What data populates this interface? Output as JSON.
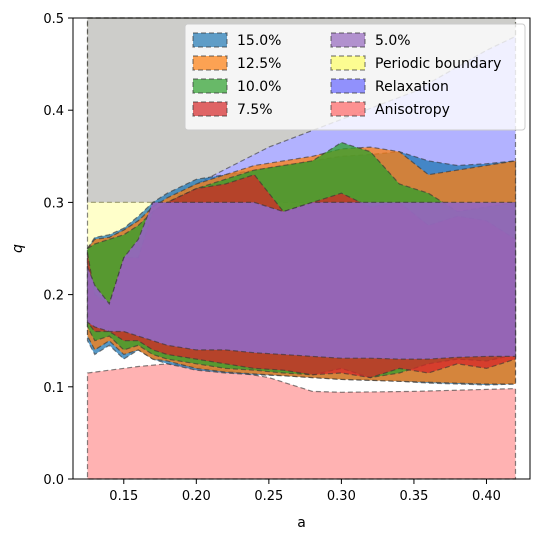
{
  "chart_data": {
    "type": "area",
    "xlabel": "a",
    "ylabel": "q",
    "xlim": [
      0.115,
      0.43
    ],
    "ylim": [
      0.0,
      0.5
    ],
    "x_ticks": [
      "0.15",
      "0.20",
      "0.25",
      "0.30",
      "0.35",
      "0.40"
    ],
    "x_tick_values": [
      0.15,
      0.2,
      0.25,
      0.3,
      0.35,
      0.4
    ],
    "y_ticks": [
      "0.0",
      "0.1",
      "0.2",
      "0.3",
      "0.4",
      "0.5"
    ],
    "y_tick_values": [
      0.0,
      0.1,
      0.2,
      0.3,
      0.4,
      0.5
    ],
    "grid": false,
    "legend": {
      "placement": "top-right",
      "columns": 2,
      "entries": [
        {
          "label": "15.0%",
          "color": "#1f77b4"
        },
        {
          "label": "12.5%",
          "color": "#ff7f0e"
        },
        {
          "label": "10.0%",
          "color": "#2ca02c"
        },
        {
          "label": "7.5%",
          "color": "#d62728"
        },
        {
          "label": "5.0%",
          "color": "#9467bd"
        },
        {
          "label": "Periodic boundary",
          "color": "#ffff66"
        },
        {
          "label": "Relaxation",
          "color": "#6666ff"
        },
        {
          "label": "Anisotropy",
          "color": "#ff6666"
        }
      ]
    },
    "regions": [
      {
        "name": "Anisotropy",
        "color": "#ff6666",
        "opacity": 0.5,
        "upper": {
          "x": [
            0.125,
            0.14,
            0.16,
            0.18,
            0.2,
            0.22,
            0.25,
            0.28,
            0.3,
            0.35,
            0.42
          ],
          "y": [
            0.115,
            0.118,
            0.122,
            0.125,
            0.122,
            0.118,
            0.11,
            0.095,
            0.094,
            0.095,
            0.098
          ]
        },
        "lower": {
          "x": [
            0.125,
            0.42
          ],
          "y": [
            0.0,
            0.0
          ]
        }
      },
      {
        "name": "Relaxation",
        "color": "#6666ff",
        "opacity": 0.5,
        "upper": {
          "x": [
            0.125,
            0.42
          ],
          "y": [
            0.5,
            0.5
          ]
        },
        "lower": {
          "x": [
            0.125,
            0.42
          ],
          "y": [
            0.3,
            0.3
          ]
        }
      },
      {
        "name": "Periodic boundary",
        "color": "#ffff66",
        "opacity": 0.35,
        "upper": {
          "x": [
            0.125,
            0.15,
            0.17,
            0.2,
            0.25,
            0.3,
            0.35,
            0.4,
            0.42
          ],
          "y": [
            0.25,
            0.27,
            0.29,
            0.32,
            0.36,
            0.39,
            0.42,
            0.465,
            0.48
          ]
        },
        "lower": {
          "x": [
            0.125,
            0.42
          ],
          "y": [
            0.5,
            0.5
          ]
        }
      },
      {
        "name": "15.0%",
        "color": "#1f77b4",
        "opacity": 0.75,
        "upper": {
          "x": [
            0.125,
            0.13,
            0.14,
            0.15,
            0.16,
            0.17,
            0.18,
            0.2,
            0.22,
            0.24,
            0.26,
            0.28,
            0.3,
            0.32,
            0.34,
            0.36,
            0.38,
            0.4,
            0.42
          ],
          "y": [
            0.25,
            0.262,
            0.265,
            0.272,
            0.285,
            0.3,
            0.31,
            0.325,
            0.33,
            0.335,
            0.34,
            0.345,
            0.35,
            0.352,
            0.355,
            0.345,
            0.34,
            0.342,
            0.345
          ]
        },
        "lower": {
          "x": [
            0.125,
            0.13,
            0.14,
            0.15,
            0.16,
            0.17,
            0.18,
            0.2,
            0.22,
            0.24,
            0.26,
            0.28,
            0.3,
            0.32,
            0.34,
            0.36,
            0.38,
            0.4,
            0.42
          ],
          "y": [
            0.15,
            0.135,
            0.145,
            0.13,
            0.14,
            0.13,
            0.125,
            0.118,
            0.115,
            0.113,
            0.112,
            0.11,
            0.108,
            0.107,
            0.106,
            0.104,
            0.103,
            0.102,
            0.103
          ]
        }
      },
      {
        "name": "12.5%",
        "color": "#ff7f0e",
        "opacity": 0.75,
        "upper": {
          "x": [
            0.125,
            0.13,
            0.14,
            0.15,
            0.16,
            0.17,
            0.18,
            0.2,
            0.22,
            0.24,
            0.26,
            0.28,
            0.3,
            0.32,
            0.34,
            0.36,
            0.38,
            0.4,
            0.42
          ],
          "y": [
            0.25,
            0.26,
            0.262,
            0.27,
            0.28,
            0.295,
            0.305,
            0.32,
            0.33,
            0.34,
            0.345,
            0.35,
            0.358,
            0.36,
            0.355,
            0.33,
            0.335,
            0.34,
            0.345
          ]
        },
        "lower": {
          "x": [
            0.125,
            0.13,
            0.14,
            0.15,
            0.16,
            0.17,
            0.18,
            0.2,
            0.22,
            0.24,
            0.26,
            0.28,
            0.3,
            0.32,
            0.34,
            0.36,
            0.38,
            0.4,
            0.42
          ],
          "y": [
            0.155,
            0.14,
            0.15,
            0.135,
            0.14,
            0.13,
            0.128,
            0.12,
            0.116,
            0.114,
            0.112,
            0.11,
            0.108,
            0.107,
            0.106,
            0.105,
            0.104,
            0.103,
            0.103
          ]
        }
      },
      {
        "name": "10.0%",
        "color": "#2ca02c",
        "opacity": 0.75,
        "upper": {
          "x": [
            0.125,
            0.13,
            0.14,
            0.15,
            0.16,
            0.17,
            0.18,
            0.2,
            0.22,
            0.24,
            0.26,
            0.28,
            0.3,
            0.32,
            0.34,
            0.36,
            0.38,
            0.4,
            0.42
          ],
          "y": [
            0.25,
            0.255,
            0.26,
            0.265,
            0.275,
            0.29,
            0.3,
            0.315,
            0.325,
            0.335,
            0.34,
            0.345,
            0.365,
            0.355,
            0.32,
            0.31,
            0.29,
            0.295,
            0.3
          ]
        },
        "lower": {
          "x": [
            0.125,
            0.13,
            0.14,
            0.15,
            0.16,
            0.17,
            0.18,
            0.2,
            0.22,
            0.24,
            0.26,
            0.28,
            0.3,
            0.32,
            0.34,
            0.36,
            0.38,
            0.4,
            0.42
          ],
          "y": [
            0.165,
            0.15,
            0.155,
            0.14,
            0.145,
            0.135,
            0.13,
            0.125,
            0.12,
            0.118,
            0.115,
            0.113,
            0.12,
            0.11,
            0.115,
            0.125,
            0.13,
            0.128,
            0.135
          ]
        }
      },
      {
        "name": "7.5%",
        "color": "#d62728",
        "opacity": 0.75,
        "upper": {
          "x": [
            0.125,
            0.13,
            0.14,
            0.15,
            0.16,
            0.17,
            0.18,
            0.2,
            0.22,
            0.24,
            0.26,
            0.28,
            0.3,
            0.32,
            0.34,
            0.36,
            0.38,
            0.4,
            0.42
          ],
          "y": [
            0.245,
            0.2,
            0.19,
            0.24,
            0.24,
            0.29,
            0.3,
            0.315,
            0.32,
            0.33,
            0.29,
            0.3,
            0.31,
            0.295,
            0.3,
            0.275,
            0.285,
            0.28,
            0.26
          ]
        },
        "lower": {
          "x": [
            0.125,
            0.13,
            0.14,
            0.15,
            0.16,
            0.17,
            0.18,
            0.2,
            0.22,
            0.24,
            0.26,
            0.28,
            0.3,
            0.32,
            0.34,
            0.36,
            0.38,
            0.4,
            0.42
          ],
          "y": [
            0.17,
            0.16,
            0.16,
            0.15,
            0.15,
            0.14,
            0.135,
            0.13,
            0.125,
            0.12,
            0.118,
            0.113,
            0.115,
            0.11,
            0.12,
            0.115,
            0.125,
            0.12,
            0.13
          ]
        }
      },
      {
        "name": "5.0%",
        "color": "#9467bd",
        "opacity": 0.95,
        "upper": {
          "x": [
            0.125,
            0.13,
            0.14,
            0.15,
            0.16,
            0.17,
            0.18,
            0.2,
            0.22,
            0.24,
            0.26,
            0.28,
            0.3,
            0.32,
            0.34,
            0.36,
            0.38,
            0.4,
            0.42
          ],
          "y": [
            0.23,
            0.21,
            0.19,
            0.24,
            0.26,
            0.3,
            0.3,
            0.3,
            0.3,
            0.3,
            0.29,
            0.3,
            0.3,
            0.3,
            0.3,
            0.3,
            0.3,
            0.3,
            0.3
          ]
        },
        "lower": {
          "x": [
            0.125,
            0.13,
            0.14,
            0.15,
            0.16,
            0.17,
            0.18,
            0.2,
            0.22,
            0.24,
            0.26,
            0.28,
            0.3,
            0.32,
            0.34,
            0.36,
            0.38,
            0.4,
            0.42
          ],
          "y": [
            0.17,
            0.165,
            0.16,
            0.16,
            0.155,
            0.15,
            0.145,
            0.14,
            0.14,
            0.137,
            0.135,
            0.133,
            0.131,
            0.131,
            0.13,
            0.13,
            0.132,
            0.133,
            0.133
          ]
        }
      }
    ]
  }
}
